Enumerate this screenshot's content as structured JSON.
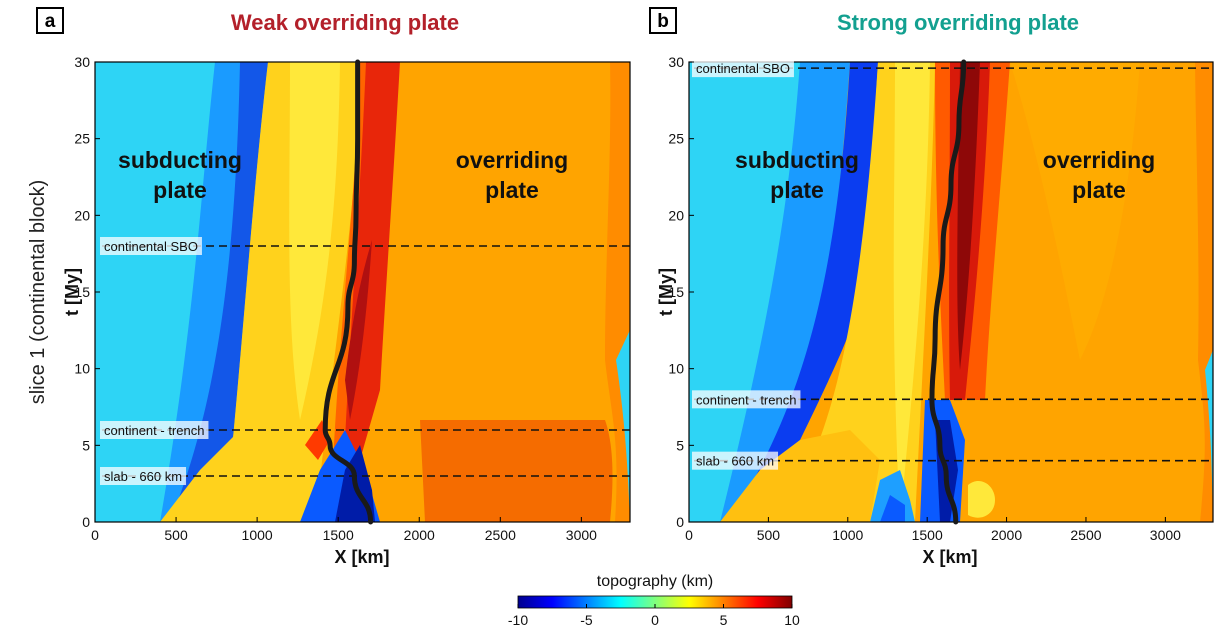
{
  "side_label": "slice 1 (continental block)",
  "colorbar": {
    "label": "topography (km)",
    "ticks": [
      "-10",
      "-5",
      "0",
      "5",
      "10"
    ],
    "range": [
      -10,
      10
    ],
    "colormap": "jet"
  },
  "chart_data": [
    {
      "type": "heatmap",
      "panel": "a",
      "title": "Weak overriding plate",
      "title_color": "#b3202a",
      "xlabel": "X [km]",
      "ylabel": "t [My]",
      "xlim": [
        0,
        3300
      ],
      "ylim": [
        0,
        30
      ],
      "xticks": [
        "0",
        "500",
        "1000",
        "1500",
        "2000",
        "2500",
        "3000"
      ],
      "yticks": [
        "0",
        "5",
        "10",
        "15",
        "20",
        "25",
        "30"
      ],
      "region_labels": {
        "subducting": [
          "subducting",
          "plate"
        ],
        "overriding": [
          "overriding",
          "plate"
        ]
      },
      "events": [
        {
          "label": "continental SBO",
          "t": 18
        },
        {
          "label": "continent - trench",
          "t": 6
        },
        {
          "label": "slab - 660 km",
          "t": 3
        }
      ],
      "trench": {
        "x": [
          1700,
          1600,
          1450,
          1420,
          1560,
          1600,
          1610,
          1620,
          1620
        ],
        "t": [
          0,
          3,
          5,
          6,
          14,
          17,
          20,
          25,
          30
        ]
      }
    },
    {
      "type": "heatmap",
      "panel": "b",
      "title": "Strong overriding plate",
      "title_color": "#13a090",
      "xlabel": "X [km]",
      "ylabel": "t [My]",
      "xlim": [
        0,
        3300
      ],
      "ylim": [
        0,
        30
      ],
      "xticks": [
        "0",
        "500",
        "1000",
        "1500",
        "2000",
        "2500",
        "3000"
      ],
      "yticks": [
        "0",
        "5",
        "10",
        "15",
        "20",
        "25",
        "30"
      ],
      "region_labels": {
        "subducting": [
          "subducting",
          "plate"
        ],
        "overriding": [
          "overriding",
          "plate"
        ]
      },
      "events": [
        {
          "label": "continental SBO",
          "t": 29.6
        },
        {
          "label": "continent - trench",
          "t": 8
        },
        {
          "label": "slab - 660 km",
          "t": 4
        }
      ],
      "trench": {
        "x": [
          1680,
          1620,
          1580,
          1530,
          1550,
          1600,
          1650,
          1700,
          1730
        ],
        "t": [
          0,
          3,
          5,
          8,
          12,
          18,
          22,
          26,
          30
        ]
      }
    }
  ]
}
